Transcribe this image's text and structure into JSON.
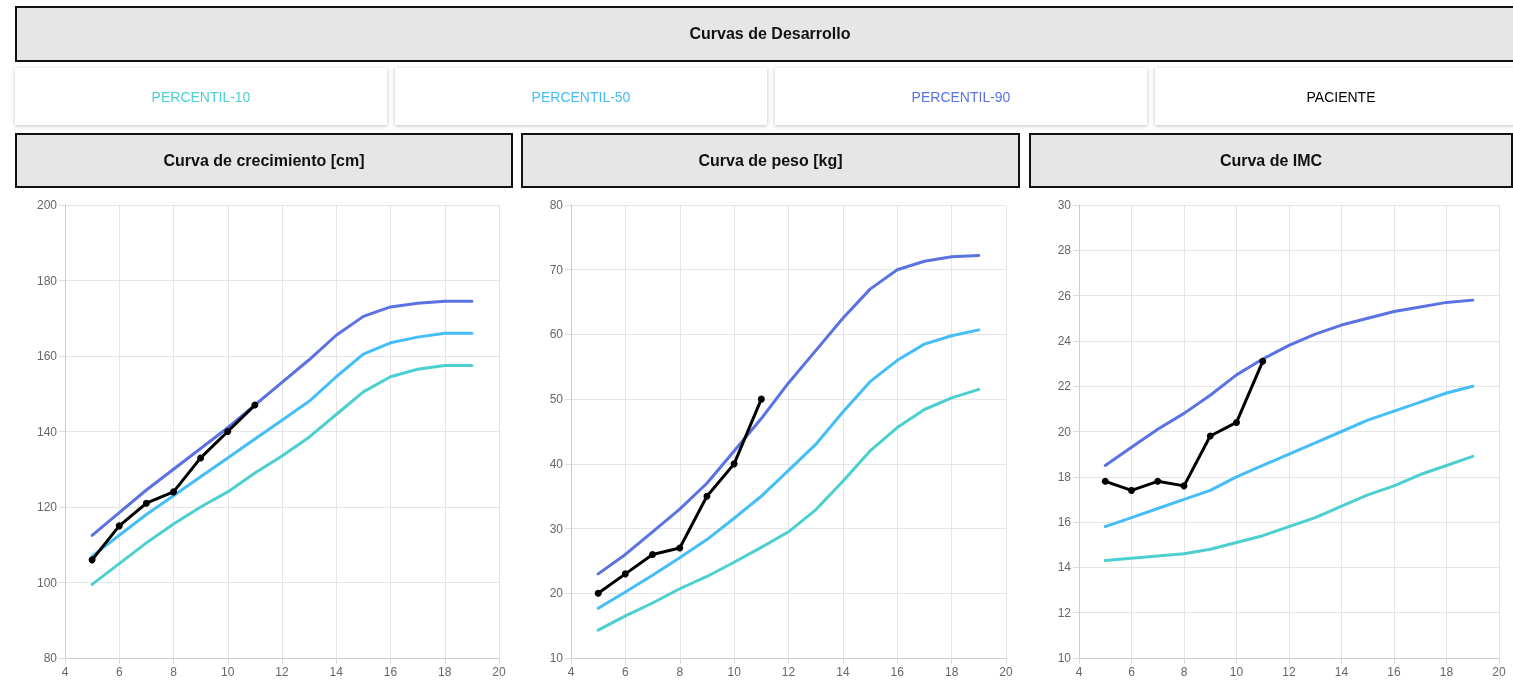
{
  "chart_data": [
    {
      "type": "other",
      "title": "Curvas de Desarrollo"
    },
    {
      "type": "line",
      "title": "Curva de crecimiento [cm]",
      "legend": "top",
      "grid": true,
      "line_style": "solid",
      "x": [
        5,
        6,
        7,
        8,
        9,
        10,
        11,
        12,
        13,
        14,
        15,
        16,
        17,
        18,
        19
      ],
      "xlim": [
        4,
        20
      ],
      "xticks": [
        4,
        6,
        8,
        10,
        12,
        14,
        16,
        18,
        20
      ],
      "ylim": [
        80,
        200
      ],
      "yticks": [
        80,
        100,
        120,
        140,
        160,
        180,
        200
      ],
      "series": [
        {
          "name": "PERCENTIL-10",
          "color": "#4ccfcf",
          "marker": "none",
          "values": [
            99.5,
            105,
            110.5,
            115.5,
            120,
            124,
            129,
            133.5,
            138.5,
            144.5,
            150.5,
            154.5,
            156.5,
            157.5,
            157.5
          ]
        },
        {
          "name": "PERCENTIL-50",
          "color": "#45bdf7",
          "marker": "none",
          "values": [
            107,
            112.5,
            118,
            123,
            128,
            133,
            138,
            143,
            148,
            154.5,
            160.5,
            163.5,
            165,
            166,
            166
          ]
        },
        {
          "name": "PERCENTIL-90",
          "color": "#5a72e2",
          "marker": "none",
          "values": [
            112.5,
            118.5,
            124.5,
            130,
            135.5,
            141,
            147,
            153,
            159,
            165.5,
            170.5,
            173,
            174,
            174.5,
            174.5
          ]
        },
        {
          "name": "PACIENTE",
          "color": "#000000",
          "marker": "circle",
          "x": [
            5,
            6,
            7,
            8,
            9,
            10,
            11
          ],
          "values": [
            106,
            115,
            121,
            124,
            133,
            140,
            147
          ]
        }
      ]
    },
    {
      "type": "line",
      "title": "Curva de peso [kg]",
      "grid": true,
      "line_style": "solid",
      "x": [
        5,
        6,
        7,
        8,
        9,
        10,
        11,
        12,
        13,
        14,
        15,
        16,
        17,
        18,
        19
      ],
      "xlim": [
        4,
        20
      ],
      "xticks": [
        4,
        6,
        8,
        10,
        12,
        14,
        16,
        18,
        20
      ],
      "ylim": [
        10,
        80
      ],
      "yticks": [
        10,
        20,
        30,
        40,
        50,
        60,
        70,
        80
      ],
      "series": [
        {
          "color": "#4ccfcf",
          "marker": "none",
          "values": [
            14.3,
            16.5,
            18.5,
            20.7,
            22.6,
            24.8,
            27.1,
            29.5,
            32.9,
            37.3,
            42,
            45.6,
            48.4,
            50.2,
            51.5
          ]
        },
        {
          "color": "#45bdf7",
          "marker": "none",
          "values": [
            17.7,
            20.2,
            22.8,
            25.5,
            28.3,
            31.6,
            35,
            39,
            43,
            48,
            52.7,
            56,
            58.5,
            59.8,
            60.7
          ]
        },
        {
          "color": "#5a72e2",
          "marker": "none",
          "values": [
            23,
            26,
            29.5,
            33,
            37,
            42,
            47,
            52.5,
            57.5,
            62.5,
            67,
            70,
            71.3,
            72,
            72.2
          ]
        },
        {
          "color": "#000000",
          "marker": "circle",
          "x": [
            5,
            6,
            7,
            8,
            9,
            10,
            11
          ],
          "values": [
            20,
            23,
            26,
            27,
            35,
            40,
            50
          ]
        }
      ]
    },
    {
      "type": "line",
      "title": "Curva de IMC",
      "grid": true,
      "line_style": "solid",
      "x": [
        5,
        6,
        7,
        8,
        9,
        10,
        11,
        12,
        13,
        14,
        15,
        16,
        17,
        18,
        19
      ],
      "xlim": [
        4,
        20
      ],
      "xticks": [
        4,
        6,
        8,
        10,
        12,
        14,
        16,
        18,
        20
      ],
      "ylim": [
        10,
        30
      ],
      "yticks": [
        10,
        12,
        14,
        16,
        18,
        20,
        22,
        24,
        26,
        28,
        30
      ],
      "series": [
        {
          "color": "#4ccfcf",
          "marker": "none",
          "values": [
            14.3,
            14.4,
            14.5,
            14.6,
            14.8,
            15.1,
            15.4,
            15.8,
            16.2,
            16.7,
            17.2,
            17.6,
            18.1,
            18.5,
            18.9
          ]
        },
        {
          "color": "#45bdf7",
          "marker": "none",
          "values": [
            15.8,
            16.2,
            16.6,
            17,
            17.4,
            18,
            18.5,
            19,
            19.5,
            20,
            20.5,
            20.9,
            21.3,
            21.7,
            22
          ]
        },
        {
          "color": "#5a72e2",
          "marker": "none",
          "values": [
            18.5,
            19.3,
            20.1,
            20.8,
            21.6,
            22.5,
            23.2,
            23.8,
            24.3,
            24.7,
            25,
            25.3,
            25.5,
            25.7,
            25.8
          ]
        },
        {
          "color": "#000000",
          "marker": "circle",
          "x": [
            5,
            6,
            7,
            8,
            9,
            10,
            11
          ],
          "values": [
            17.8,
            17.4,
            17.8,
            17.6,
            19.8,
            20.4,
            23.1
          ]
        }
      ]
    }
  ]
}
